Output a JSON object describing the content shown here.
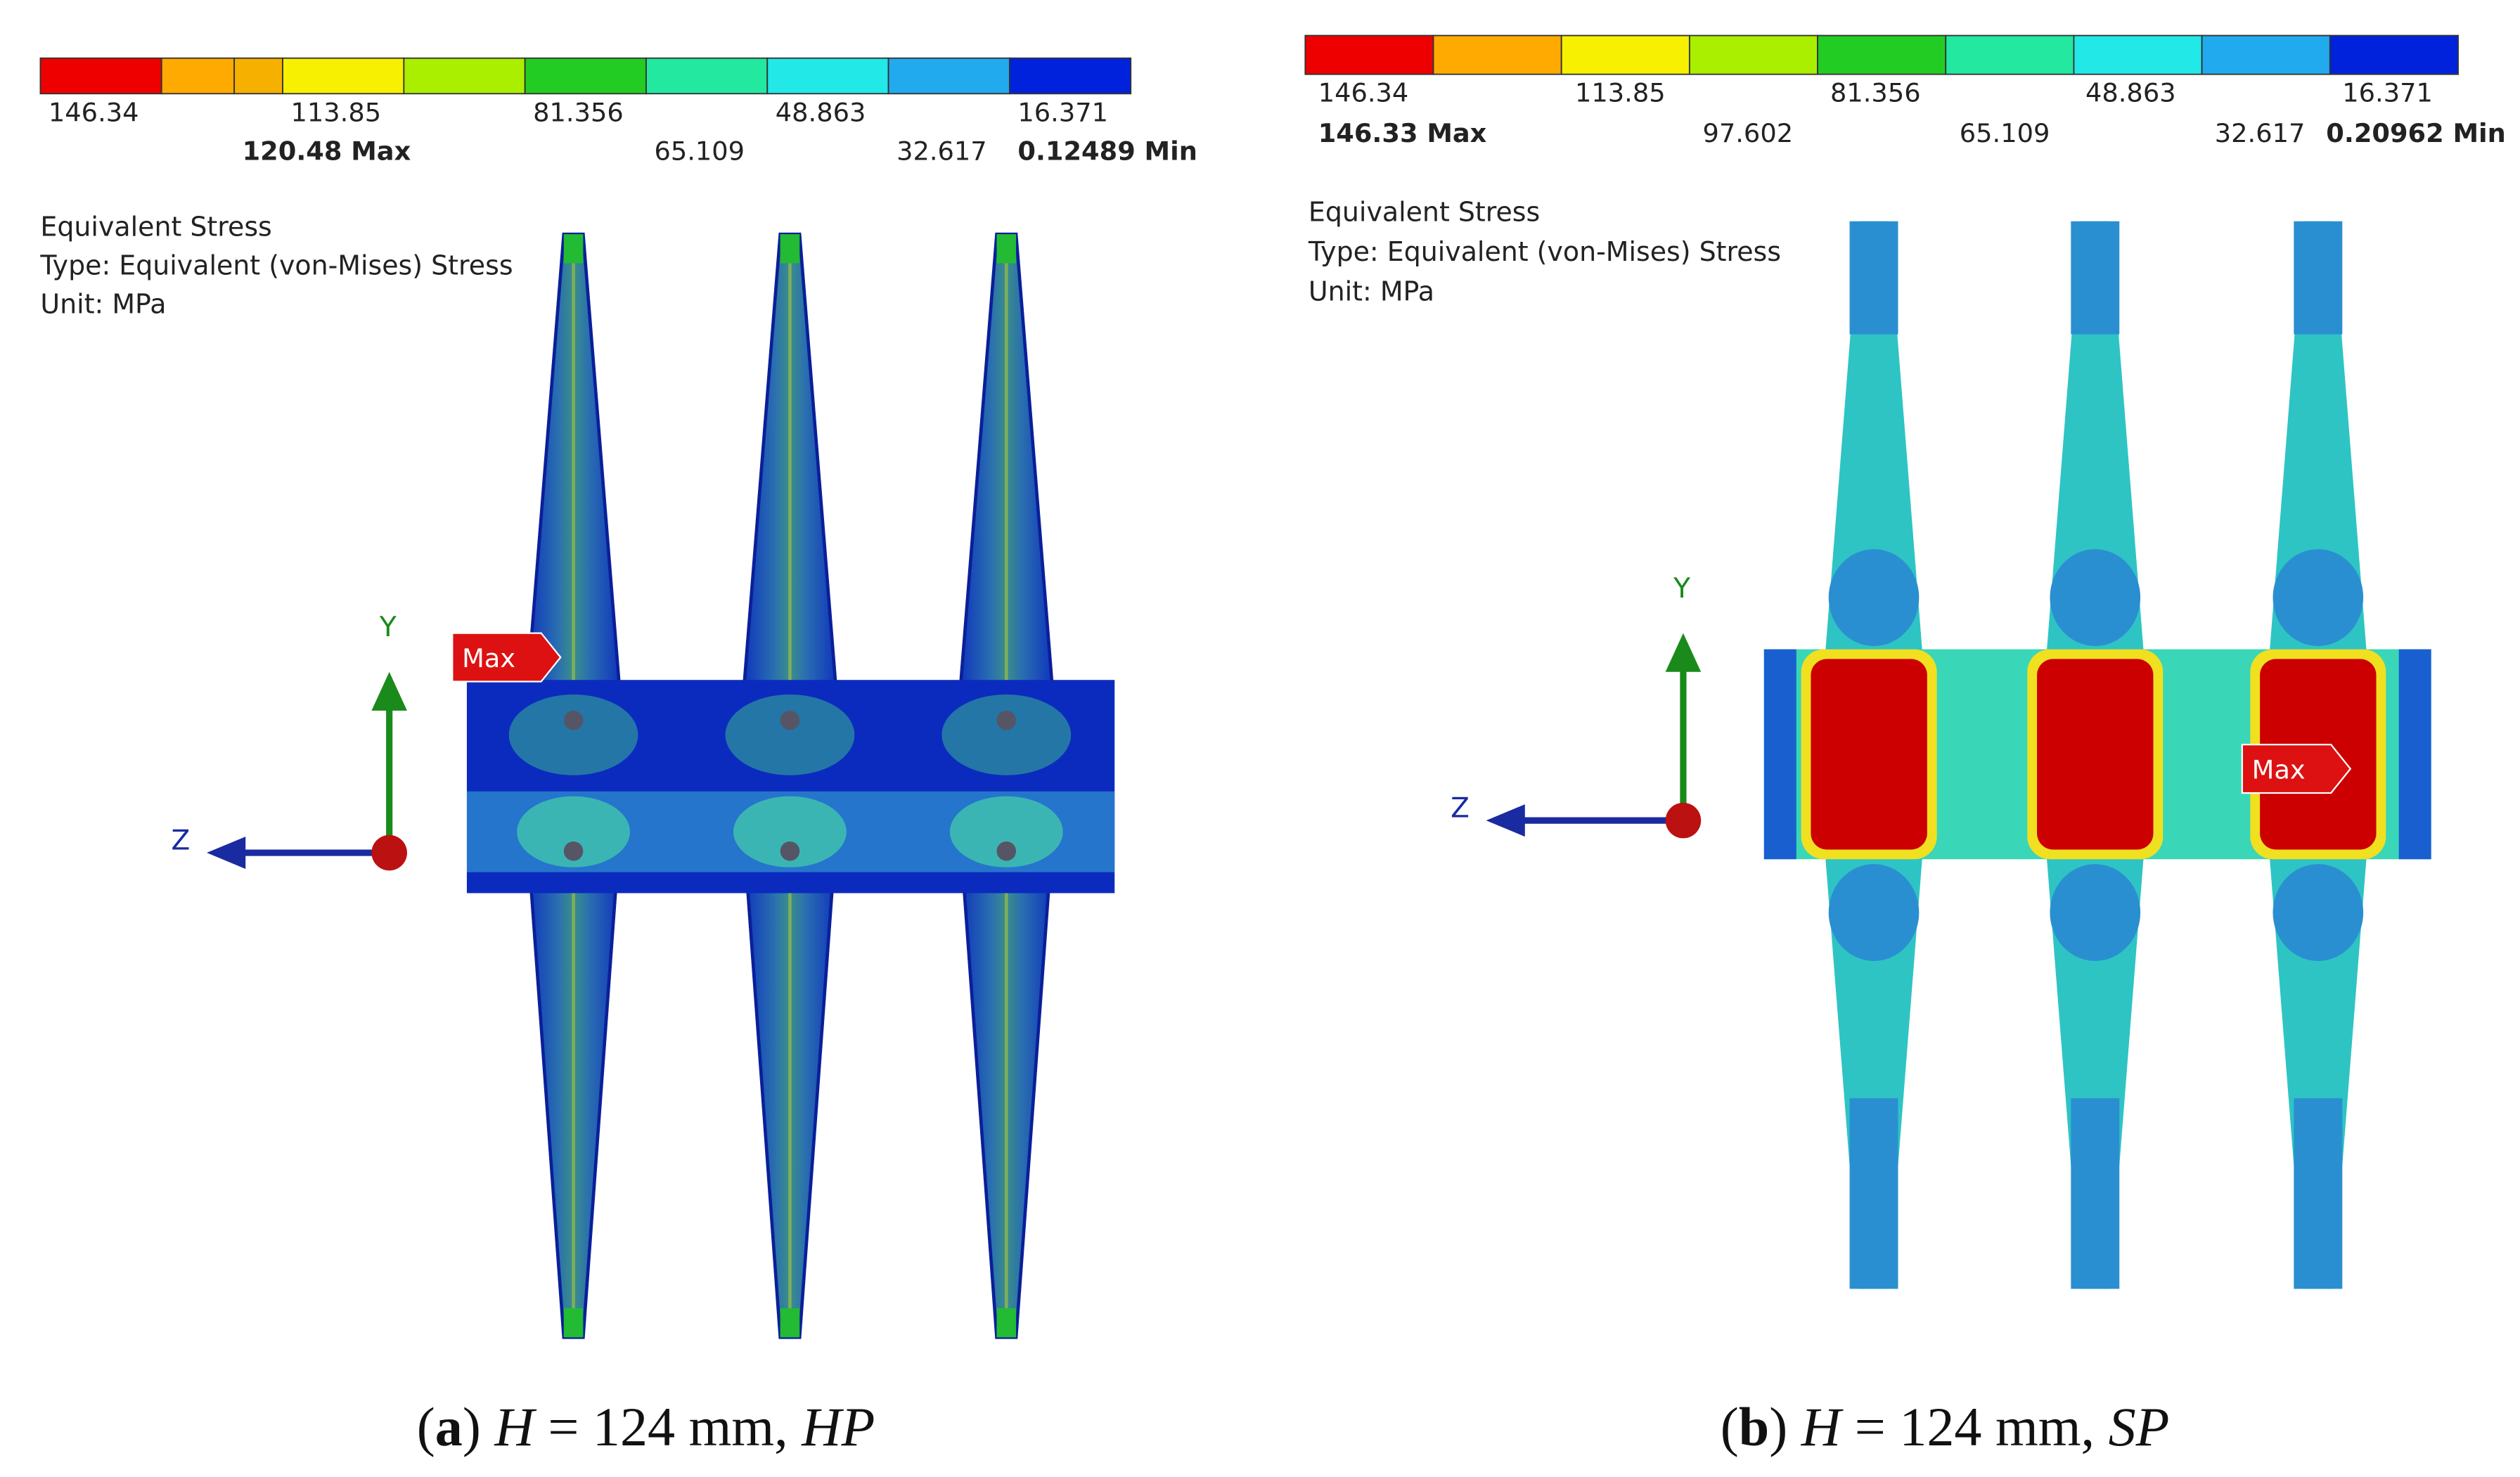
{
  "panels": [
    {
      "legend_top": [
        "146.34",
        "113.85",
        "81.356",
        "48.863",
        "16.371"
      ],
      "legend_bottom": [
        "120.48 Max",
        "65.109",
        "32.617",
        "0.12489 Min"
      ],
      "info": [
        "Equivalent Stress",
        "Type: Equivalent (von-Mises) Stress",
        "Unit: MPa"
      ],
      "axis_y": "Y",
      "axis_z": "Z",
      "max_tag": "Max",
      "caption": {
        "letter": "a",
        "H": "H",
        "value": "= 124 mm,",
        "kind": "HP"
      }
    },
    {
      "legend_top": [
        "146.34",
        "113.85",
        "81.356",
        "48.863",
        "16.371"
      ],
      "legend_bottom": [
        "146.33 Max",
        "97.602",
        "65.109",
        "32.617",
        "0.20962 Min"
      ],
      "info": [
        "Equivalent Stress",
        "Type: Equivalent (von-Mises) Stress",
        "Unit: MPa"
      ],
      "axis_y": "Y",
      "axis_z": "Z",
      "max_tag": "Max",
      "caption": {
        "letter": "b",
        "H": "H",
        "value": "= 124 mm,",
        "kind": "SP"
      }
    }
  ]
}
